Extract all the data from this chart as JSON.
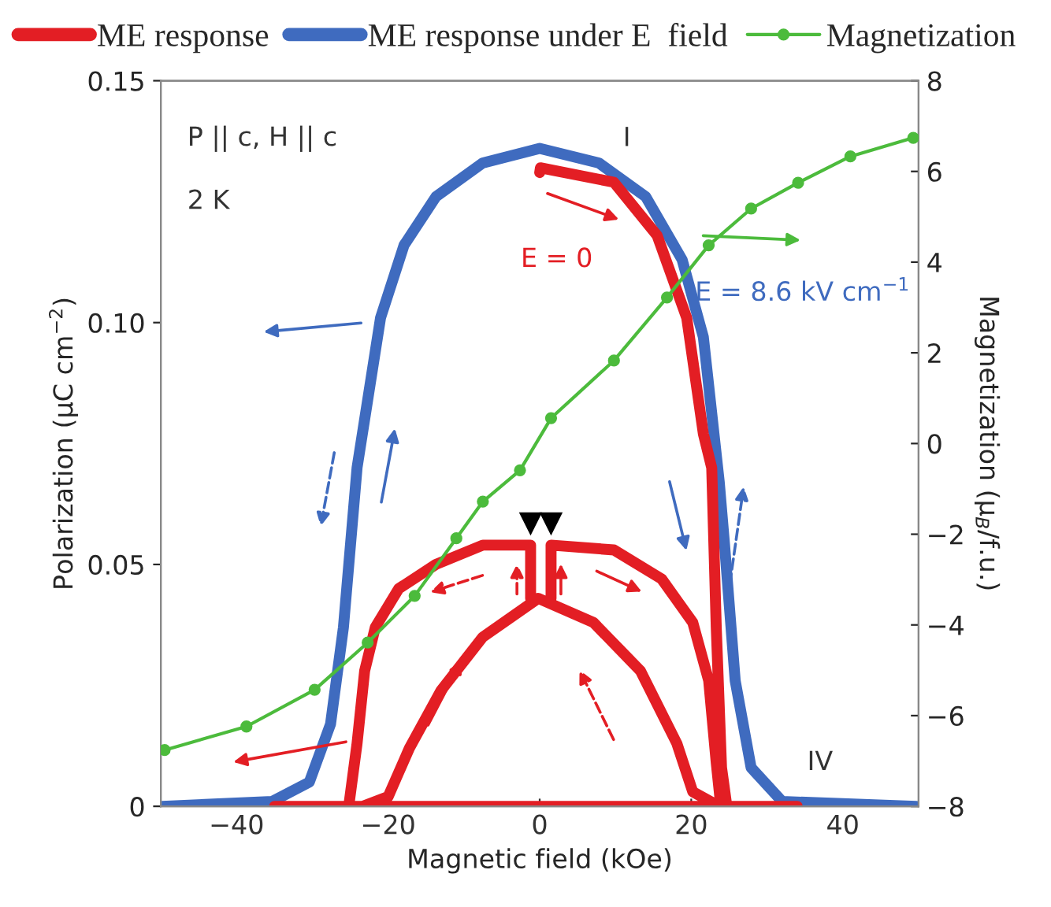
{
  "chart_data": {
    "type": "line",
    "xlabel": "Magnetic field (kOe)",
    "ylabel": "Polarization (μC cm$^{−2}$)",
    "y2label": "Magnetization (μ$_{B}$/f.u.)",
    "xlim": [
      -50,
      50
    ],
    "xticks": [
      {
        "value": -40,
        "label": "−40"
      },
      {
        "value": -20,
        "label": "−20"
      },
      0,
      20,
      40
    ],
    "ylim": [
      0,
      0.15
    ],
    "yticks": [
      0,
      0.05,
      {
        "value": 0.1,
        "label": "0.10"
      },
      0.15
    ],
    "y2lim": [
      -8,
      8
    ],
    "y2ticks": [
      {
        "value": -8,
        "label": "−8"
      },
      {
        "value": -6,
        "label": "−6"
      },
      {
        "value": -4,
        "label": "−4"
      },
      {
        "value": -2,
        "label": "−2"
      },
      0,
      2,
      4,
      6,
      8
    ],
    "grid": false,
    "legend": "top",
    "series": [
      {
        "name": "ME response",
        "color": "#e31e24",
        "marker": "none",
        "x": [
          0,
          0.1,
          9.8,
          15.5,
          19.4,
          21.6,
          22.7,
          23.3,
          24,
          24.7,
          null,
          -35,
          34,
          null,
          -25.2,
          -24.1,
          -23.1,
          -21.7,
          -18.6,
          -13.7,
          -7.5,
          -1.2,
          null,
          1.5,
          9.8,
          16.1,
          20.2,
          22.3,
          23.3,
          23.9,
          null,
          -23.4,
          -20,
          -17.2,
          -13,
          -7.5,
          -0.2,
          7.1,
          13.3,
          18.1,
          20.2,
          23.7,
          null,
          -1.2,
          -1.2,
          null,
          1.5,
          1.5
        ],
        "values": [
          0.131,
          0.132,
          0.129,
          0.118,
          0.101,
          0.077,
          0.07,
          0.037,
          0.008,
          0,
          null,
          0,
          0,
          null,
          0,
          0.013,
          0.028,
          0.037,
          0.045,
          0.05,
          0.054,
          0.054,
          null,
          0.054,
          0.053,
          0.047,
          0.038,
          0.026,
          0.009,
          0,
          null,
          0,
          0.002,
          0.012,
          0.024,
          0.035,
          0.043,
          0.038,
          0.028,
          0.013,
          0.003,
          0,
          null,
          0.043,
          0.054,
          null,
          0.043,
          0.054
        ]
      },
      {
        "name": "ME response under E  field",
        "color": "#3f6bbf",
        "marker": "none",
        "x": [
          -49.8,
          -35.3,
          -30.4,
          -27.6,
          -25.9,
          -24.1,
          -21,
          -17.9,
          -13.7,
          -7.5,
          0,
          7.8,
          14,
          18.8,
          21.6,
          23.7,
          24.4,
          25.8,
          27.9,
          32,
          49.7
        ],
        "values": [
          0,
          0.001,
          0.005,
          0.017,
          0.037,
          0.07,
          0.101,
          0.116,
          0.126,
          0.133,
          0.136,
          0.133,
          0.126,
          0.113,
          0.097,
          0.067,
          0.054,
          0.026,
          0.008,
          0.001,
          0
        ]
      },
      {
        "name": "Magnetization",
        "color": "#4cbb3c",
        "axis": "y2",
        "marker": "circle",
        "x": [
          -49.5,
          -38.7,
          -29.7,
          -22.7,
          -16.5,
          -11,
          -7.5,
          -2.6,
          1.5,
          9.8,
          16.8,
          22.3,
          27.9,
          34.1,
          41,
          49.3
        ],
        "values": [
          -6.76,
          -6.24,
          -5.43,
          -4.39,
          -3.36,
          -2.09,
          -1.28,
          -0.59,
          0.56,
          1.83,
          3.22,
          4.37,
          5.18,
          5.75,
          6.33,
          6.74
        ]
      }
    ],
    "annotations": [
      "P || c, H || c",
      "2 K",
      "I",
      "E = 0",
      "E = 8.6 kV cm$^{−1}$",
      "IV"
    ]
  }
}
